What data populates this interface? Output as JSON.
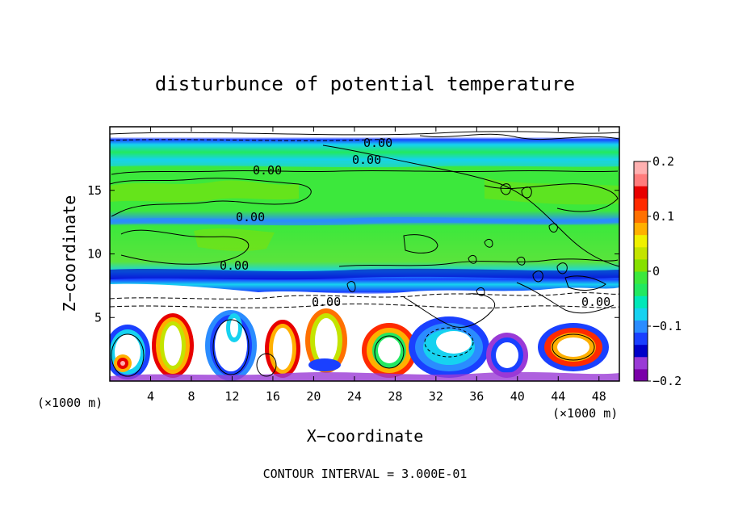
{
  "chart_data": {
    "type": "heatmap",
    "title": "disturbunce of potential temperature",
    "xlabel": "X−coordinate",
    "ylabel": "Z−coordinate",
    "x_unit_left": "(×1000 m)",
    "x_unit_right": "(×1000 m)",
    "xlim": [
      0,
      50
    ],
    "ylim": [
      0,
      20
    ],
    "x_ticks": [
      4,
      8,
      12,
      16,
      20,
      24,
      28,
      32,
      36,
      40,
      44,
      48
    ],
    "x_tick_labels": [
      "4",
      "8",
      "12",
      "16",
      "20",
      "24",
      "28",
      "32",
      "36",
      "40",
      "44",
      "48"
    ],
    "y_ticks": [
      5,
      10,
      15
    ],
    "y_tick_labels": [
      "5",
      "10",
      "15"
    ],
    "colorbar": {
      "range": [
        -0.2,
        0.2
      ],
      "ticks": [
        0.2,
        0.1,
        0,
        -0.1,
        -0.2
      ],
      "tick_labels": [
        "0.2",
        "0.1",
        "0",
        "−0.1",
        "−0.2"
      ],
      "colors": [
        "#7a00a8",
        "#9a3ad6",
        "#0000c8",
        "#1a40ff",
        "#2a8cff",
        "#16d2f0",
        "#00e8b8",
        "#22e860",
        "#3ce83c",
        "#86e000",
        "#c4e400",
        "#f0f000",
        "#ffb000",
        "#ff7000",
        "#ff2a00",
        "#e80000",
        "#ff7c7c",
        "#ffb0b0"
      ]
    },
    "contour_labels": [
      {
        "text": "0.00",
        "x": 25.0,
        "z": 18.7
      },
      {
        "text": "0.00",
        "x": 24.6,
        "z": 17.3
      },
      {
        "text": "0.00",
        "x": 14.8,
        "z": 16.5
      },
      {
        "text": "0.00",
        "x": 13.5,
        "z": 12.9
      },
      {
        "text": "0.00",
        "x": 11.8,
        "z": 9.1
      },
      {
        "text": "0.00",
        "x": 22.1,
        "z": 6.2
      },
      {
        "text": "0.00",
        "x": 46.5,
        "z": 6.2
      }
    ],
    "contour_interval_text": "CONTOUR INTERVAL = 3.000E-01"
  }
}
